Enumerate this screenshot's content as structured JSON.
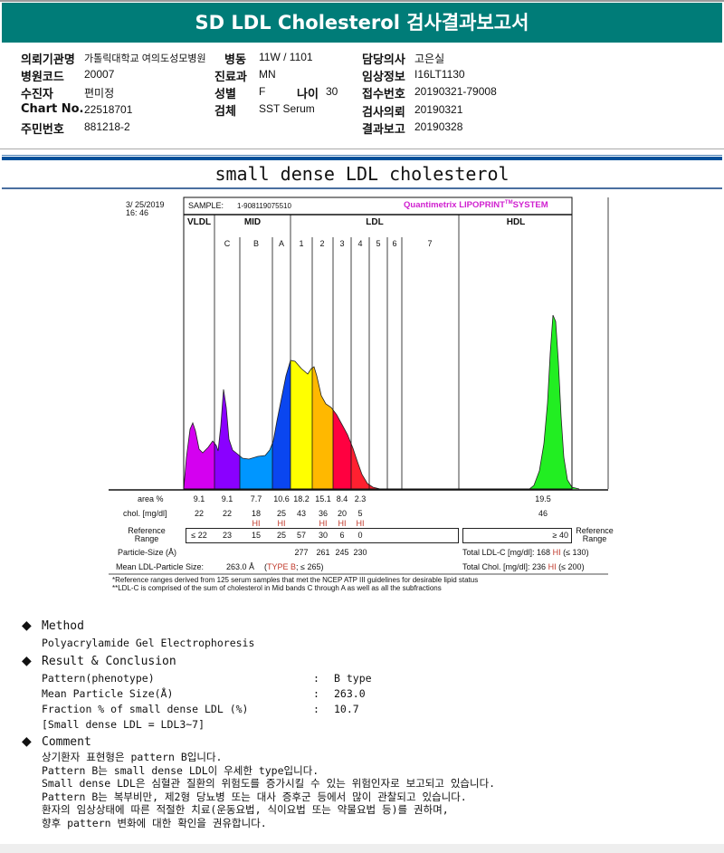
{
  "header": {
    "title": "SD LDL Cholesterol 검사결과보고서",
    "bg_color": "#007c78"
  },
  "info": {
    "institution_label": "의뢰기관명",
    "institution": "가톨릭대학교 여의도성모병원",
    "ward_label": "병동",
    "ward": "11W / 1101",
    "doctor_label": "담당의사",
    "doctor": "고은실",
    "hospital_code_label": "병원코드",
    "hospital_code": "20007",
    "department_label": "진료과",
    "department": "MN",
    "clinical_info_label": "임상정보",
    "clinical_info": "I16LT1130",
    "patient_label": "수진자",
    "patient": "편미정",
    "sex_label": "성별",
    "sex": "F",
    "age_label": "나이",
    "age": "30",
    "accession_label": "접수번호",
    "accession": "20190321-79008",
    "chart_no_label": "Chart No.",
    "chart_no": "22518701",
    "specimen_label": "검체",
    "specimen": "SST Serum",
    "request_date_label": "검사의뢰",
    "request_date": "20190321",
    "id_label": "주민번호",
    "id_no": "881218-2",
    "report_date_label": "결과보고",
    "report_date": "20190328"
  },
  "section_title": "small dense LDL cholesterol",
  "lipoprint": {
    "date": "3/ 25/2019",
    "time": "16: 46",
    "sample_label": "SAMPLE:",
    "sample": "1-908119075510",
    "brand": "Quantimetrix LIPOPRINT",
    "brand_tm": "TM",
    "brand_suffix": "SYSTEM",
    "groups": [
      "VLDL",
      "MID",
      "LDL",
      "HDL"
    ],
    "subbands": [
      "C",
      "B",
      "A",
      "1",
      "2",
      "3",
      "4",
      "5",
      "6",
      "7"
    ],
    "band_colors": {
      "VLDL": "#d400f0",
      "C": "#8a00ff",
      "B": "#0096ff",
      "A": "#0a46f0",
      "1": "#ffff00",
      "2": "#ffb800",
      "3": "#ff0040",
      "4": "#ff2030",
      "HDL": "#22ee22"
    },
    "row_labels": {
      "area": "area %",
      "chol": "chol. [mg/dl]",
      "ref1": "Reference",
      "ref2": "Range",
      "particle": "Particle-Size (Å)"
    },
    "fractions": [
      {
        "name": "VLDL",
        "area": "9.1",
        "chol": "22",
        "hi": "",
        "ref": "≤ 22"
      },
      {
        "name": "C",
        "area": "9.1",
        "chol": "22",
        "hi": "",
        "ref": "23"
      },
      {
        "name": "B",
        "area": "7.7",
        "chol": "18",
        "hi": "HI",
        "ref": "15"
      },
      {
        "name": "A",
        "area": "10.6",
        "chol": "25",
        "hi": "HI",
        "ref": "25"
      },
      {
        "name": "1",
        "area": "18.2",
        "chol": "43",
        "hi": "",
        "ref": "57",
        "size": "277"
      },
      {
        "name": "2",
        "area": "15.1",
        "chol": "36",
        "hi": "HI",
        "ref": "30",
        "size": "261"
      },
      {
        "name": "3",
        "area": "8.4",
        "chol": "20",
        "hi": "HI",
        "ref": "6",
        "size": "245"
      },
      {
        "name": "4",
        "area": "2.3",
        "chol": "5",
        "hi": "HI",
        "ref": "0",
        "size": "230"
      }
    ],
    "hdl": {
      "area": "19.5",
      "chol": "46",
      "ref": "≥ 40"
    },
    "mean_size_label": "Mean LDL-Particle Size:",
    "mean_size": "263.0 Å",
    "mean_type_open": "(",
    "mean_type": "TYPE B",
    "mean_type_ref": "; ≤ 265)",
    "total_ldl_label": "Total LDL-C [mg/dl]:",
    "total_ldl": "168",
    "total_ldl_flag": "HI",
    "total_ldl_ref": "(≤ 130)",
    "total_chol_label": "Total Chol. [mg/dl]:",
    "total_chol": "236",
    "total_chol_flag": "HI",
    "total_chol_ref": "(≤ 200)",
    "footnote1": "*Reference ranges derived from 125 serum samples that met the NCEP ATP III guidelines for desirable lipid status",
    "footnote2": "**LDL-C is comprised of the sum of cholesterol in Mid bands C through A as well as all the subfractions"
  },
  "method": {
    "title": "Method",
    "text": "Polyacrylamide Gel Electrophoresis"
  },
  "result": {
    "title": "Result & Conclusion",
    "rows": [
      {
        "label": "Pattern(phenotype)",
        "value": "B type"
      },
      {
        "label": "Mean Particle Size(Å)",
        "value": "263.0"
      },
      {
        "label": "Fraction % of small dense LDL (%)",
        "value": "10.7"
      }
    ],
    "separator": ":",
    "note": "[Small dense LDL = LDL3~7]"
  },
  "comment": {
    "title": "Comment",
    "lines": [
      "상기환자 표현형은 pattern B입니다.",
      "Pattern B는 small dense LDL이 우세한 type입니다.",
      "Small dense LDL은 심혈관 질환의 위험도를 증가시킬 수 있는 위험인자로 보고되고 있습니다.",
      "Pattern B는 복부비만, 제2형 당뇨병 또는 대사 증후군 등에서 많이 관찰되고 있습니다.",
      "환자의 임상상태에 따른 적절한 치료(운동요법, 식이요법 또는 약물요법 등)를 권하며,",
      "향후 pattern 변화에 대한 확인을 권유합니다."
    ]
  }
}
